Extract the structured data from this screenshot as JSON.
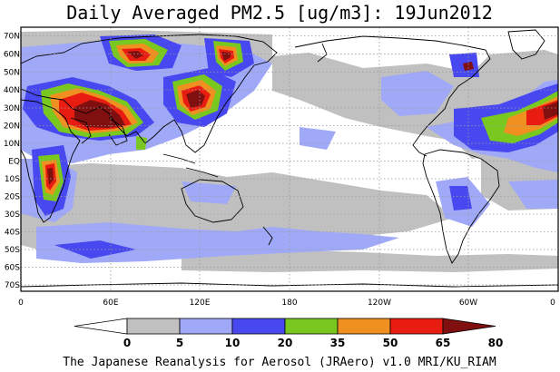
{
  "title": "Daily Averaged PM2.5 [ug/m3]: 19Jun2012",
  "credit": "The Japanese Reanalysis for Aerosol (JRAero) v1.0 MRI/KU_RIAM",
  "map": {
    "lat_labels": [
      "70N",
      "60N",
      "50N",
      "40N",
      "30N",
      "20N",
      "10N",
      "EQ",
      "10S",
      "20S",
      "30S",
      "40S",
      "50S",
      "60S",
      "70S"
    ],
    "lon_labels": [
      "0",
      "60E",
      "120E",
      "180",
      "120W",
      "60W",
      "0"
    ],
    "colors": {
      "background": "#ffffff",
      "level_5_10": "#c0c0c0",
      "level_10_20": "#a0a8f8",
      "level_20_35": "#4848f0",
      "level_35_50": "#78c820",
      "level_50_65": "#f09020",
      "level_65_80": "#e81c10",
      "level_80_plus": "#801010",
      "coastline": "#000000",
      "grid": "#9a9a9a"
    }
  },
  "colorbar": {
    "labels": [
      "0",
      "5",
      "10",
      "20",
      "35",
      "50",
      "65",
      "80"
    ],
    "colors": [
      "#ffffff",
      "#c0c0c0",
      "#a0a8f8",
      "#4848f0",
      "#78c820",
      "#f09020",
      "#e81c10",
      "#801010"
    ]
  }
}
